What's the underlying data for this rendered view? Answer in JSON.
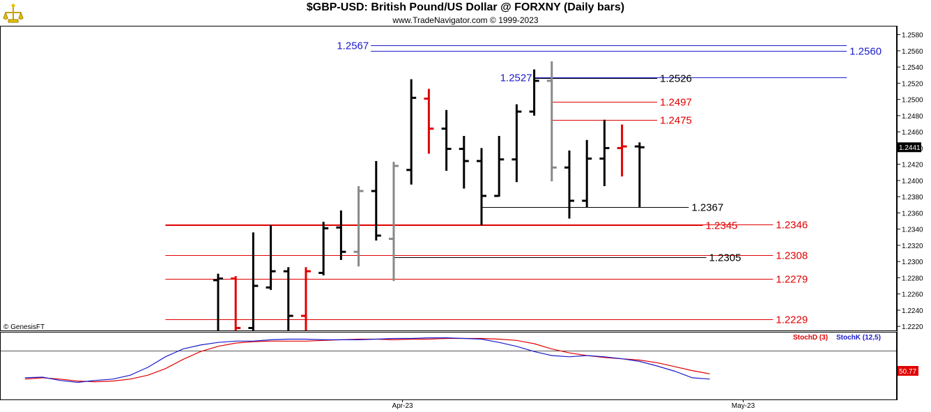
{
  "header": {
    "title": "$GBP-USD:  British Pound/US Dollar @ FORXNY  (Daily bars)",
    "subtitle": "www.TradeNavigator.com © 1999-2023",
    "copyright": "© GenesisFT"
  },
  "colors": {
    "up_bar": "#000000",
    "down_bar": "#e00000",
    "neutral_bar": "#888888",
    "blue_level": "#1a1acc",
    "red_level": "#e00000",
    "black_level": "#000000",
    "stoch_d": "#e00000",
    "stoch_k": "#1a1acc"
  },
  "chart_data": [
    {
      "type": "ohlc",
      "y_axis": {
        "range": [
          1.2215,
          1.259
        ],
        "tick_labels": [
          "1.2580",
          "1.2560",
          "1.2540",
          "1.2520",
          "1.2500",
          "1.2480",
          "1.2460",
          "1.2440",
          "1.2420",
          "1.2400",
          "1.2380",
          "1.2360",
          "1.2340",
          "1.2320",
          "1.2300",
          "1.2280",
          "1.2260",
          "1.2240",
          "1.2220"
        ],
        "tick_values": [
          1.258,
          1.256,
          1.254,
          1.252,
          1.25,
          1.248,
          1.246,
          1.244,
          1.242,
          1.24,
          1.238,
          1.236,
          1.234,
          1.232,
          1.23,
          1.228,
          1.226,
          1.224,
          1.222
        ],
        "last_price_label": "1.2441",
        "last_price": 1.2441
      },
      "x_axis": {
        "tick_labels": [
          "Apr-23",
          "May-23"
        ],
        "tick_bar_index": [
          10.5,
          29.9
        ]
      },
      "bars": [
        {
          "i": 0,
          "o": 1.2277,
          "h": 1.2285,
          "l": 1.2215,
          "c": 1.2279,
          "color": "up"
        },
        {
          "i": 1,
          "o": 1.2279,
          "h": 1.2282,
          "l": 1.2215,
          "c": 1.2218,
          "color": "down"
        },
        {
          "i": 2,
          "o": 1.2218,
          "h": 1.2336,
          "l": 1.2215,
          "c": 1.227,
          "color": "up"
        },
        {
          "i": 3,
          "o": 1.2268,
          "h": 1.2345,
          "l": 1.2265,
          "c": 1.2288,
          "color": "up"
        },
        {
          "i": 4,
          "o": 1.2288,
          "h": 1.2293,
          "l": 1.2215,
          "c": 1.2233,
          "color": "up"
        },
        {
          "i": 5,
          "o": 1.2233,
          "h": 1.2293,
          "l": 1.2215,
          "c": 1.2288,
          "color": "down"
        },
        {
          "i": 6,
          "o": 1.2286,
          "h": 1.2349,
          "l": 1.2283,
          "c": 1.2341,
          "color": "up"
        },
        {
          "i": 7,
          "o": 1.2342,
          "h": 1.2363,
          "l": 1.2302,
          "c": 1.2312,
          "color": "up"
        },
        {
          "i": 8,
          "o": 1.2312,
          "h": 1.2393,
          "l": 1.2294,
          "c": 1.2387,
          "color": "neutral"
        },
        {
          "i": 9,
          "o": 1.2387,
          "h": 1.2424,
          "l": 1.2326,
          "c": 1.2332,
          "color": "up"
        },
        {
          "i": 10,
          "o": 1.2328,
          "h": 1.2423,
          "l": 1.2276,
          "c": 1.2418,
          "color": "neutral"
        },
        {
          "i": 11,
          "o": 1.2413,
          "h": 1.2525,
          "l": 1.2395,
          "c": 1.2502,
          "color": "up"
        },
        {
          "i": 12,
          "o": 1.2501,
          "h": 1.2513,
          "l": 1.2433,
          "c": 1.2464,
          "color": "down"
        },
        {
          "i": 13,
          "o": 1.2464,
          "h": 1.2487,
          "l": 1.2412,
          "c": 1.2439,
          "color": "up"
        },
        {
          "i": 14,
          "o": 1.2439,
          "h": 1.2455,
          "l": 1.239,
          "c": 1.2424,
          "color": "up"
        },
        {
          "i": 15,
          "o": 1.2424,
          "h": 1.244,
          "l": 1.2345,
          "c": 1.2381,
          "color": "up"
        },
        {
          "i": 16,
          "o": 1.2381,
          "h": 1.2455,
          "l": 1.238,
          "c": 1.2426,
          "color": "up"
        },
        {
          "i": 17,
          "o": 1.2426,
          "h": 1.2494,
          "l": 1.2398,
          "c": 1.2485,
          "color": "up"
        },
        {
          "i": 18,
          "o": 1.2485,
          "h": 1.2537,
          "l": 1.248,
          "c": 1.2523,
          "color": "up"
        },
        {
          "i": 19,
          "o": 1.2523,
          "h": 1.2547,
          "l": 1.2399,
          "c": 1.2416,
          "color": "neutral"
        },
        {
          "i": 20,
          "o": 1.2416,
          "h": 1.2437,
          "l": 1.2353,
          "c": 1.2375,
          "color": "up"
        },
        {
          "i": 21,
          "o": 1.2375,
          "h": 1.245,
          "l": 1.2367,
          "c": 1.2427,
          "color": "up"
        },
        {
          "i": 22,
          "o": 1.2427,
          "h": 1.2475,
          "l": 1.2393,
          "c": 1.244,
          "color": "up"
        },
        {
          "i": 23,
          "o": 1.244,
          "h": 1.2469,
          "l": 1.2405,
          "c": 1.2442,
          "color": "down"
        },
        {
          "i": 24,
          "o": 1.2442,
          "h": 1.2447,
          "l": 1.2367,
          "c": 1.2441,
          "color": "up"
        }
      ],
      "levels": [
        {
          "value": 1.2567,
          "label": "1.2567",
          "color": "blue",
          "side": "left",
          "x0": 8.7,
          "x1": 35.8
        },
        {
          "value": 1.256,
          "label": "1.2560",
          "color": "blue",
          "side": "right",
          "x0": 8.7,
          "x1": 35.8
        },
        {
          "value": 1.2527,
          "label": "1.2527",
          "color": "blue",
          "side": "left",
          "x0": 18.0,
          "x1": 35.8
        },
        {
          "value": 1.2526,
          "label": "1.2526",
          "color": "black",
          "side": "right",
          "x0": 18.0,
          "x1": 25.0
        },
        {
          "value": 1.2497,
          "label": "1.2497",
          "color": "red",
          "side": "right",
          "x0": 19.0,
          "x1": 25.0
        },
        {
          "value": 1.2475,
          "label": "1.2475",
          "color": "red",
          "side": "right",
          "x0": 19.0,
          "x1": 25.0
        },
        {
          "value": 1.2367,
          "label": "1.2367",
          "color": "black",
          "side": "right",
          "x0": 15.0,
          "x1": 26.8
        },
        {
          "value": 1.2346,
          "label": "1.2346",
          "color": "red",
          "side": "right",
          "x0": -3.0,
          "x1": 31.6
        },
        {
          "value": 1.2345,
          "label": "1.2345",
          "color": "red",
          "side": "right",
          "x0": -3.0,
          "x1": 27.6
        },
        {
          "value": 1.2308,
          "label": "1.2308",
          "color": "red",
          "side": "right",
          "x0": -3.0,
          "x1": 31.6
        },
        {
          "value": 1.2305,
          "label": "1.2305",
          "color": "black",
          "side": "right",
          "x0": 10.0,
          "x1": 27.8
        },
        {
          "value": 1.2279,
          "label": "1.2279",
          "color": "red",
          "side": "right",
          "x0": -3.0,
          "x1": 31.6
        },
        {
          "value": 1.2229,
          "label": "1.2229",
          "color": "red",
          "side": "right",
          "x0": -3.0,
          "x1": 31.6
        }
      ]
    },
    {
      "type": "line",
      "legend": [
        "StochD (3)",
        "StochK (12,5)"
      ],
      "legend_placement": "top-right",
      "last_value_label": "50.77",
      "y_range": [
        0,
        100
      ],
      "series": [
        {
          "name": "StochD (3)",
          "color": "red",
          "x_start": -11,
          "values": [
            30,
            32,
            30,
            27,
            26,
            27,
            30,
            36,
            46,
            60,
            72,
            80,
            85,
            87,
            88,
            88,
            88,
            89,
            90,
            91,
            91,
            90,
            91,
            91,
            92,
            92,
            92,
            91,
            89,
            84,
            76,
            70,
            66,
            63,
            61,
            59,
            55,
            49,
            43,
            38
          ]
        },
        {
          "name": "StochK (12,5)",
          "color": "blue",
          "x_start": -11,
          "values": [
            32,
            33,
            28,
            25,
            28,
            30,
            36,
            48,
            64,
            76,
            82,
            86,
            88,
            88,
            90,
            91,
            91,
            90,
            90,
            90,
            91,
            92,
            92,
            93,
            93,
            92,
            91,
            86,
            80,
            72,
            66,
            64,
            66,
            64,
            61,
            57,
            50,
            42,
            32,
            30
          ]
        }
      ]
    }
  ]
}
